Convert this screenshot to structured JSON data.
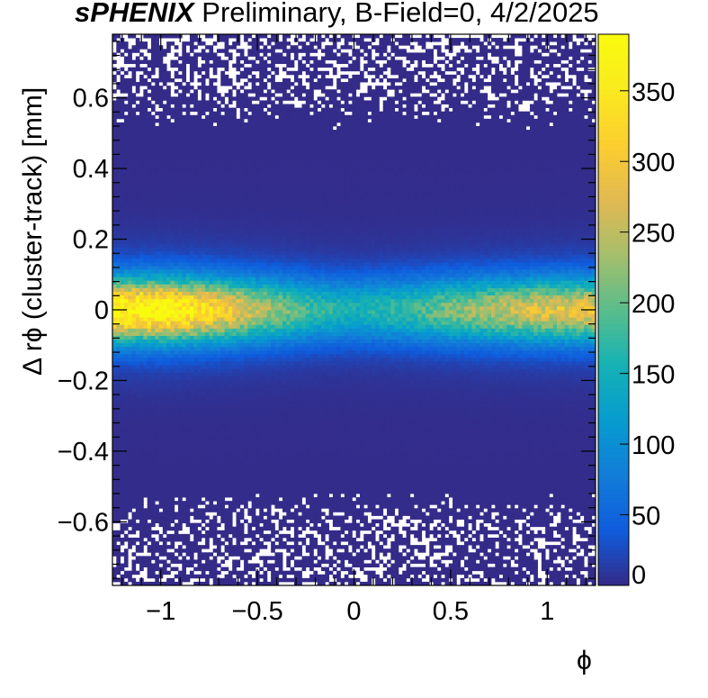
{
  "title": {
    "brand": "sPHENIX",
    "rest": " Preliminary, B-Field=0, 4/2/2025"
  },
  "chart_data": {
    "type": "heatmap",
    "title": "sPHENIX Preliminary, B-Field=0, 4/2/2025",
    "xlabel": "ϕ",
    "ylabel": "Δ rϕ (cluster-track) [mm]",
    "xlim": [
      -1.25,
      1.25
    ],
    "ylim": [
      -0.78,
      0.78
    ],
    "x_ticks": [
      -1,
      -0.5,
      0,
      0.5,
      1
    ],
    "x_tick_labels": [
      "−1",
      "−0.5",
      "0",
      "0.5",
      "1"
    ],
    "y_ticks": [
      -0.6,
      -0.4,
      -0.2,
      0,
      0.2,
      0.4,
      0.6
    ],
    "y_tick_labels": [
      "−0.6",
      "−0.4",
      "−0.2",
      "0",
      "0.2",
      "0.4",
      "0.6"
    ],
    "z_range": [
      0,
      390
    ],
    "colorbar_ticks": [
      0,
      50,
      100,
      150,
      200,
      250,
      300,
      350
    ],
    "colorbar_tick_labels": [
      "0",
      "50",
      "100",
      "150",
      "200",
      "250",
      "300",
      "350"
    ],
    "palette": "Parula",
    "core_peak_counts": [
      {
        "phi": -1.2,
        "counts": 340
      },
      {
        "phi": -1.0,
        "counts": 345
      },
      {
        "phi": -0.85,
        "counts": 320
      },
      {
        "phi": -0.5,
        "counts": 220
      },
      {
        "phi": -0.2,
        "counts": 150
      },
      {
        "phi": 0.0,
        "counts": 130
      },
      {
        "phi": 0.3,
        "counts": 155
      },
      {
        "phi": 0.5,
        "counts": 185
      },
      {
        "phi": 0.75,
        "counts": 215
      },
      {
        "phi": 0.95,
        "counts": 240
      },
      {
        "phi": 1.2,
        "counts": 250
      }
    ],
    "core_width_mm": 0.06,
    "tail_counts": 2,
    "bins": {
      "x": 125,
      "y": 150
    }
  }
}
